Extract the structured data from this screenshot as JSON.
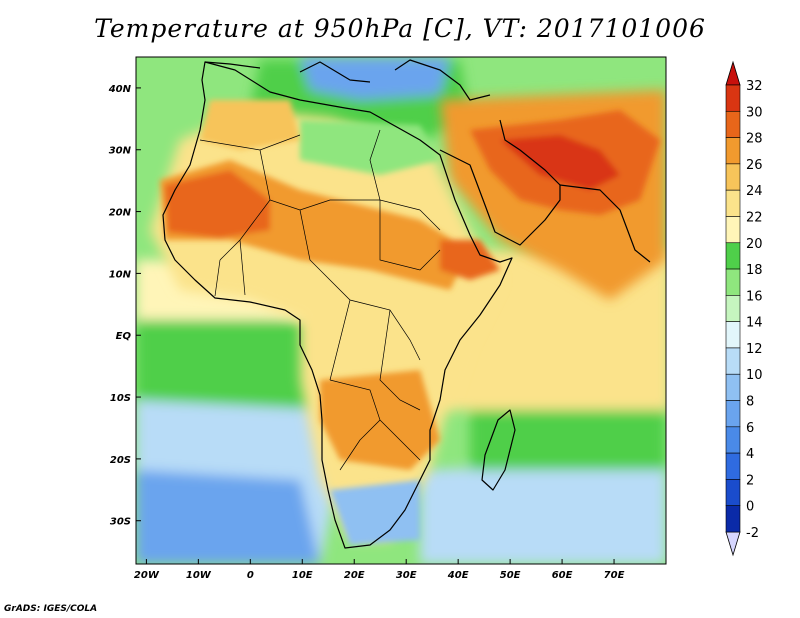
{
  "title": "Temperature at 950hPa [C], VT: 2017101006",
  "credit": "GrADS: IGES/COLA",
  "map": {
    "lon_range": [
      -22,
      80
    ],
    "lat_range": [
      -37,
      45
    ],
    "lon_ticks": [
      {
        "value": -20,
        "label": "20W"
      },
      {
        "value": -10,
        "label": "10W"
      },
      {
        "value": 0,
        "label": "0"
      },
      {
        "value": 10,
        "label": "10E"
      },
      {
        "value": 20,
        "label": "20E"
      },
      {
        "value": 30,
        "label": "30E"
      },
      {
        "value": 40,
        "label": "40E"
      },
      {
        "value": 50,
        "label": "50E"
      },
      {
        "value": 60,
        "label": "60E"
      },
      {
        "value": 70,
        "label": "70E"
      }
    ],
    "lat_ticks": [
      {
        "value": 40,
        "label": "40N"
      },
      {
        "value": 30,
        "label": "30N"
      },
      {
        "value": 20,
        "label": "20N"
      },
      {
        "value": 10,
        "label": "10N"
      },
      {
        "value": 0,
        "label": "EQ"
      },
      {
        "value": -10,
        "label": "10S"
      },
      {
        "value": -20,
        "label": "20S"
      },
      {
        "value": -30,
        "label": "30S"
      }
    ]
  },
  "colorbar": {
    "levels": [
      -2,
      0,
      2,
      4,
      6,
      8,
      10,
      12,
      14,
      16,
      18,
      20,
      22,
      24,
      26,
      28,
      30,
      32
    ],
    "colors": [
      "#000d80",
      "#0a2aa8",
      "#1a4ccc",
      "#2f6be0",
      "#4a8ae8",
      "#6aa4ee",
      "#8fc0f2",
      "#b8dcf7",
      "#e2f6fb",
      "#c6f5bf",
      "#8fe67e",
      "#4fcf4a",
      "#fff5b8",
      "#fbe38b",
      "#f7c45a",
      "#f19a2e",
      "#e8661a",
      "#d93512",
      "#c8100c"
    ],
    "under_color": "#d6d6ff",
    "over_color": "#c8100c"
  }
}
